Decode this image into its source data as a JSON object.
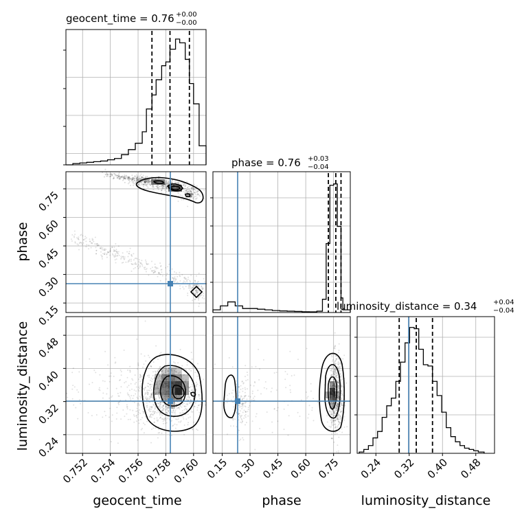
{
  "chart_data": {
    "type": "corner",
    "parameters": [
      "geocent_time",
      "phase",
      "luminosity_distance"
    ],
    "truths": {
      "geocent_time": 0.758,
      "phase": 0.26,
      "luminosity_distance": 0.313
    },
    "colors": {
      "truth": "#4682b4",
      "hist": "#000000",
      "grid": "#b0b0b0"
    },
    "titles": [
      {
        "param": "geocent_time",
        "text": "geocent_time = 0.76",
        "plus": "+0.00",
        "minus": "−0.00"
      },
      {
        "param": "phase",
        "text": "phase = 0.76",
        "plus": "+0.03",
        "minus": "−0.04"
      },
      {
        "param": "luminosity_distance",
        "text": "luminosity_distance = 0.34",
        "plus": "+0.04",
        "minus": "−0.04"
      }
    ],
    "axes": {
      "geocent_time": {
        "range": [
          0.7508,
          0.7609
        ],
        "ticks": [
          0.752,
          0.754,
          0.756,
          0.758,
          0.76
        ],
        "tick_labels": [
          "0.752",
          "0.754",
          "0.756",
          "0.758",
          "0.760"
        ],
        "label": "geocent_time"
      },
      "phase": {
        "range": [
          0.1,
          0.84
        ],
        "ticks": [
          0.15,
          0.3,
          0.45,
          0.6,
          0.75
        ],
        "tick_labels": [
          "0.15",
          "0.30",
          "0.45",
          "0.60",
          "0.75"
        ],
        "label": "phase"
      },
      "luminosity_distance": {
        "range": [
          0.195,
          0.525
        ],
        "ticks": [
          0.24,
          0.32,
          0.4,
          0.48
        ],
        "tick_labels": [
          "0.24",
          "0.32",
          "0.40",
          "0.48"
        ],
        "label": "luminosity_distance"
      }
    },
    "quantiles": {
      "geocent_time": [
        0.757,
        0.7583,
        0.7597
      ],
      "phase": [
        0.722,
        0.762,
        0.79
      ],
      "luminosity_distance": [
        0.296,
        0.337,
        0.376
      ]
    },
    "histograms": {
      "geocent_time": {
        "edges": [
          0.7508,
          0.7513,
          0.7518,
          0.7523,
          0.7528,
          0.7533,
          0.7538,
          0.7543,
          0.7548,
          0.7553,
          0.7558,
          0.7563,
          0.7566,
          0.757,
          0.7573,
          0.7577,
          0.758,
          0.7583,
          0.7587,
          0.759,
          0.7594,
          0.7597,
          0.76,
          0.7604,
          0.7609
        ],
        "density": [
          0.0,
          0.01,
          0.015,
          0.02,
          0.025,
          0.03,
          0.04,
          0.05,
          0.08,
          0.12,
          0.17,
          0.26,
          0.44,
          0.55,
          0.67,
          0.78,
          0.81,
          0.91,
          0.99,
          0.96,
          0.83,
          0.64,
          0.48,
          0.15
        ]
      },
      "phase": {
        "edges": [
          0.1,
          0.14,
          0.18,
          0.22,
          0.26,
          0.3,
          0.34,
          0.38,
          0.42,
          0.46,
          0.5,
          0.54,
          0.58,
          0.62,
          0.66,
          0.69,
          0.71,
          0.73,
          0.75,
          0.77,
          0.79,
          0.8,
          0.84
        ],
        "density": [
          0.02,
          0.05,
          0.08,
          0.05,
          0.03,
          0.03,
          0.025,
          0.02,
          0.015,
          0.012,
          0.01,
          0.008,
          0.006,
          0.005,
          0.01,
          0.1,
          0.52,
          0.96,
          0.97,
          0.65,
          0.11,
          0.02
        ]
      },
      "luminosity_distance": {
        "edges": [
          0.2,
          0.211,
          0.222,
          0.233,
          0.244,
          0.255,
          0.266,
          0.277,
          0.288,
          0.299,
          0.31,
          0.321,
          0.332,
          0.343,
          0.354,
          0.365,
          0.376,
          0.387,
          0.398,
          0.409,
          0.42,
          0.431,
          0.442,
          0.453,
          0.464,
          0.475,
          0.486,
          0.5
        ],
        "density": [
          0.01,
          0.03,
          0.06,
          0.12,
          0.17,
          0.28,
          0.37,
          0.43,
          0.56,
          0.71,
          0.86,
          0.98,
          0.97,
          0.81,
          0.69,
          0.68,
          0.56,
          0.45,
          0.32,
          0.2,
          0.13,
          0.09,
          0.06,
          0.04,
          0.03,
          0.02,
          0.01
        ]
      }
    },
    "density_blobs": {
      "geocent_time__phase": [
        {
          "x": 0.7566,
          "y": 0.79,
          "n": 180,
          "sx": 0.0006,
          "sy": 0.015
        },
        {
          "x": 0.7583,
          "y": 0.768,
          "n": 260,
          "sx": 0.0006,
          "sy": 0.012
        },
        {
          "x": 0.7598,
          "y": 0.73,
          "n": 120,
          "sx": 0.0004,
          "sy": 0.018
        },
        {
          "x": 0.7602,
          "y": 0.2,
          "n": 70,
          "sx": 0.0003,
          "sy": 0.03
        }
      ],
      "geocent_time__luminosity_distance": [
        {
          "x": 0.7581,
          "y": 0.335,
          "n": 900,
          "sx": 0.0011,
          "sy": 0.038
        },
        {
          "x": 0.7555,
          "y": 0.335,
          "n": 250,
          "sx": 0.0028,
          "sy": 0.05
        }
      ],
      "phase__luminosity_distance": [
        {
          "x": 0.765,
          "y": 0.337,
          "n": 700,
          "sx": 0.018,
          "sy": 0.045
        },
        {
          "x": 0.25,
          "y": 0.31,
          "n": 140,
          "sx": 0.03,
          "sy": 0.035
        },
        {
          "x": 0.45,
          "y": 0.33,
          "n": 90,
          "sx": 0.15,
          "sy": 0.05
        }
      ]
    }
  }
}
